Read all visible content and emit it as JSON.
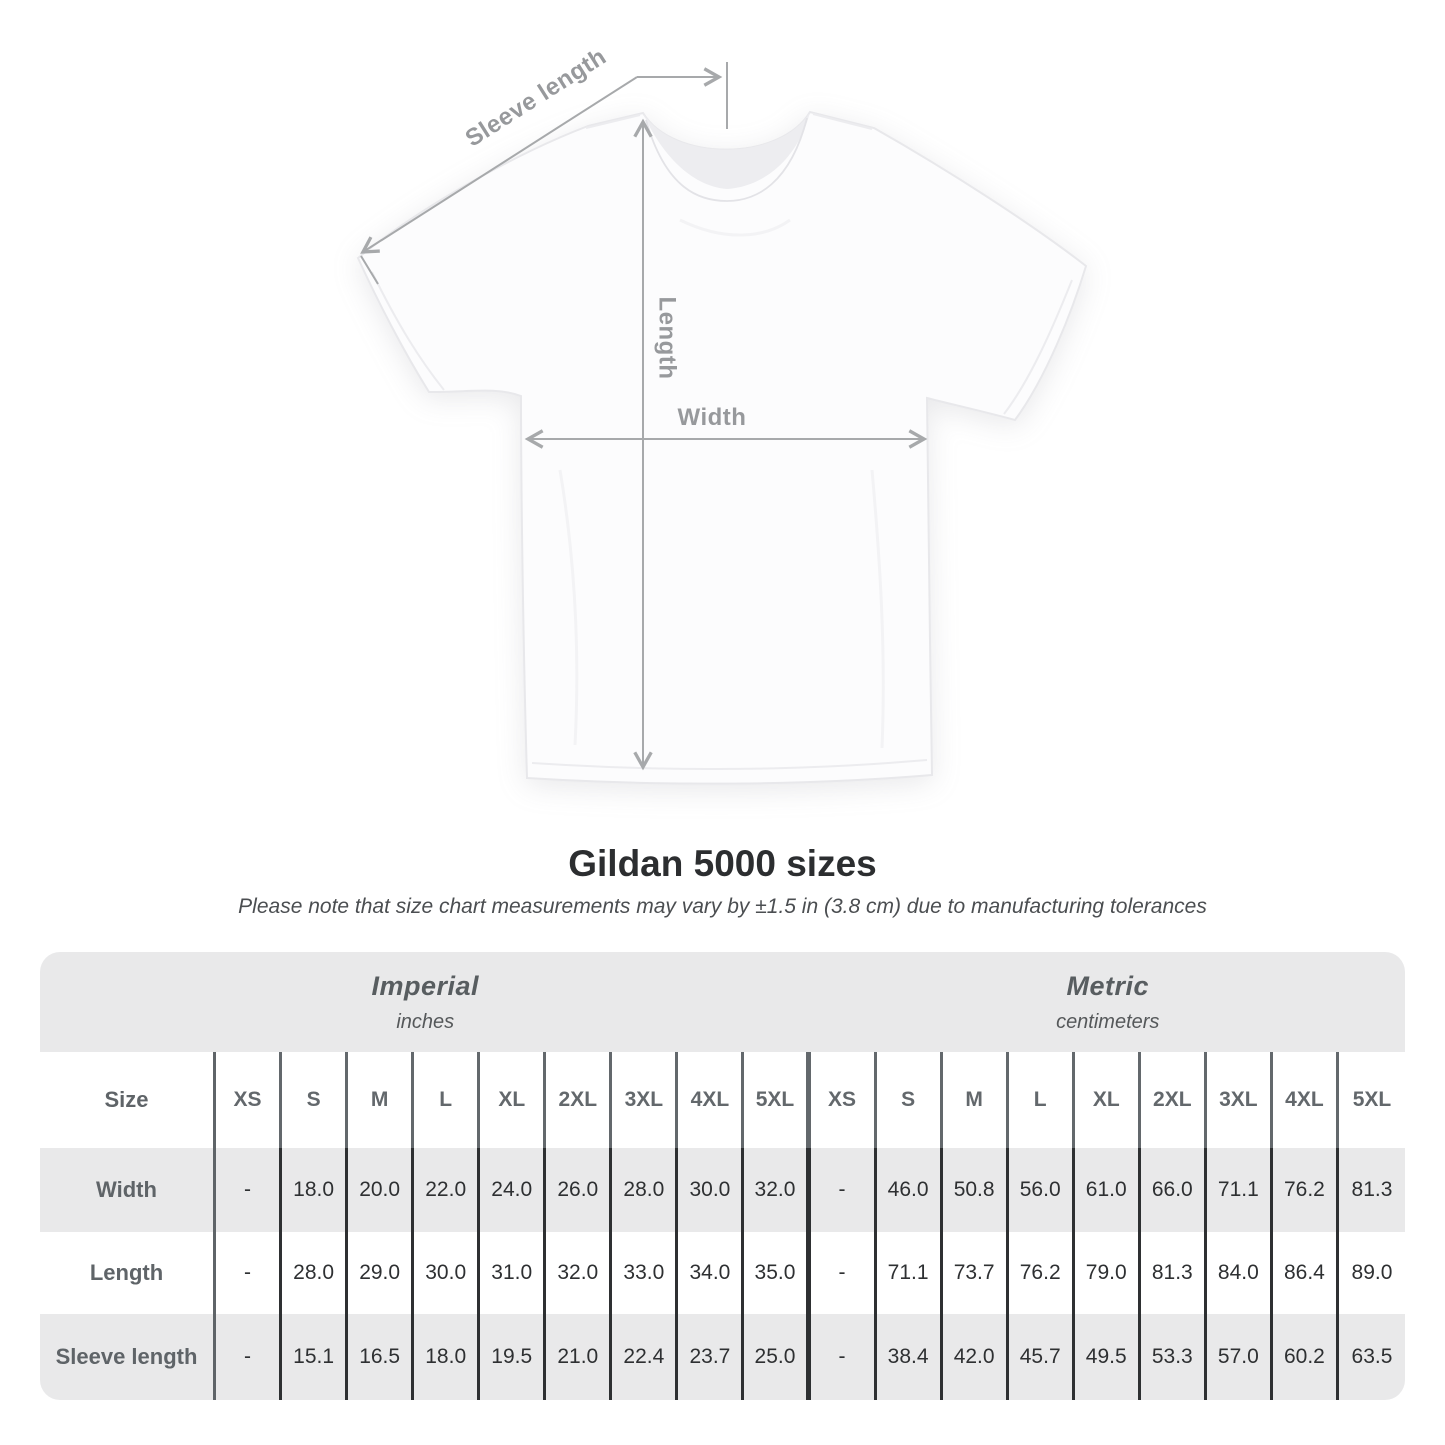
{
  "diagram": {
    "sleeve_label": "Sleeve length",
    "length_label": "Length",
    "width_label": "Width"
  },
  "heading": {
    "title": "Gildan 5000 sizes",
    "note": "Please note that size chart measurements may vary by ±1.5 in (3.8 cm) due to manufacturing tolerances"
  },
  "table": {
    "size_label": "Size",
    "unit_groups": [
      {
        "name": "Imperial",
        "unit": "inches"
      },
      {
        "name": "Metric",
        "unit": "centimeters"
      }
    ],
    "sizes": [
      "XS",
      "S",
      "M",
      "L",
      "XL",
      "2XL",
      "3XL",
      "4XL",
      "5XL"
    ],
    "rows": [
      {
        "label": "Width",
        "imperial": [
          "-",
          "18.0",
          "20.0",
          "22.0",
          "24.0",
          "26.0",
          "28.0",
          "30.0",
          "32.0"
        ],
        "metric": [
          "-",
          "46.0",
          "50.8",
          "56.0",
          "61.0",
          "66.0",
          "71.1",
          "76.2",
          "81.3"
        ]
      },
      {
        "label": "Length",
        "imperial": [
          "-",
          "28.0",
          "29.0",
          "30.0",
          "31.0",
          "32.0",
          "33.0",
          "34.0",
          "35.0"
        ],
        "metric": [
          "-",
          "71.1",
          "73.7",
          "76.2",
          "79.0",
          "81.3",
          "84.0",
          "86.4",
          "89.0"
        ]
      },
      {
        "label": "Sleeve length",
        "imperial": [
          "-",
          "15.1",
          "16.5",
          "18.0",
          "19.5",
          "21.0",
          "22.4",
          "23.7",
          "25.0"
        ],
        "metric": [
          "-",
          "38.4",
          "42.0",
          "45.7",
          "49.5",
          "53.3",
          "57.0",
          "60.2",
          "63.5"
        ]
      }
    ]
  },
  "colors": {
    "row_shade": "#e9e9ea",
    "value_text": "#2e3032",
    "label_text": "#5f6468",
    "annotation_text": "#97999c",
    "annotation_line": "#a7a9ab"
  }
}
